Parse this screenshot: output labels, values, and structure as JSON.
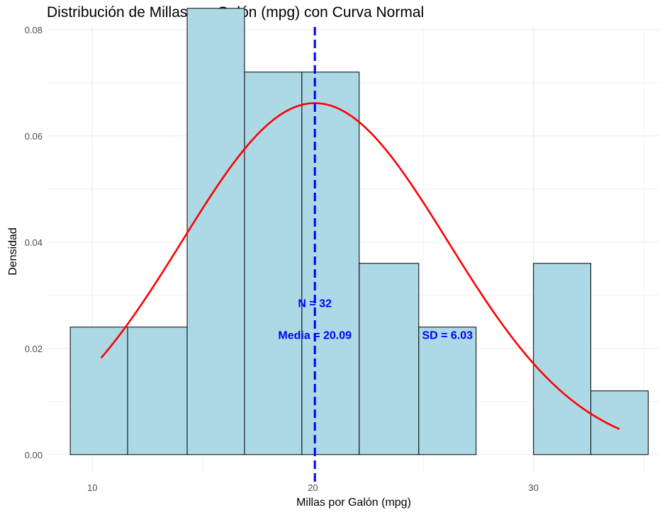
{
  "chart_data": {
    "type": "bar",
    "title": "Distribución de Millas por Galón (mpg) con Curva Normal",
    "xlabel": "Millas por Galón (mpg)",
    "ylabel": "Densidad",
    "xlim": [
      8.0,
      35.7
    ],
    "ylim": [
      -0.0035,
      0.0805
    ],
    "x_ticks": [
      10,
      20,
      30
    ],
    "x_tick_labels": [
      "10",
      "20",
      "30"
    ],
    "y_ticks": [
      0.0,
      0.02,
      0.04,
      0.06,
      0.08
    ],
    "y_tick_labels": [
      "0.00",
      "0.02",
      "0.04",
      "0.06",
      "0.08"
    ],
    "grid": true,
    "histogram": {
      "bin_edges": [
        9.0,
        11.6,
        14.3,
        16.9,
        19.5,
        22.1,
        24.8,
        27.4,
        30.0,
        32.6,
        35.2
      ],
      "densities": [
        0.024,
        0.024,
        0.084,
        0.072,
        0.072,
        0.036,
        0.024,
        0.0,
        0.036,
        0.012
      ],
      "fill_color": "#add8e6",
      "edge_color": "#000000"
    },
    "normal_curve": {
      "mean": 20.09,
      "sd": 6.03,
      "x_range": [
        10.4,
        33.9
      ],
      "color": "#ff0000"
    },
    "mean_line": {
      "x": 20.09,
      "color": "#0000ff",
      "style": "dashed"
    },
    "annotations": [
      {
        "text": "N = 32",
        "x": 20.09,
        "y": 0.0286
      },
      {
        "text": "Media = 20.09",
        "x": 20.09,
        "y": 0.0226
      },
      {
        "text": "SD = 6.03",
        "x": 26.1,
        "y": 0.0226
      }
    ]
  }
}
